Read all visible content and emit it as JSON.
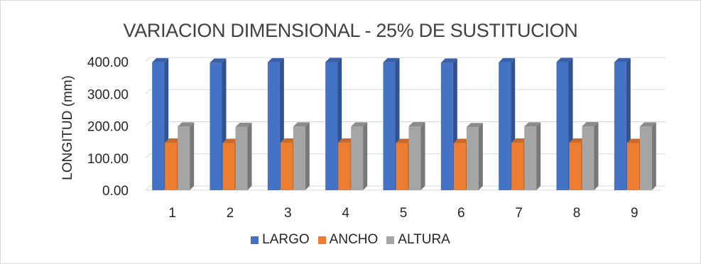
{
  "chart_data": {
    "type": "bar",
    "title": "VARIACION DIMENSIONAL - 25% DE SUSTITUCION",
    "xlabel": "",
    "ylabel": "LONGITUD (mm)",
    "ylim": [
      0,
      400
    ],
    "yticks": [
      "0.00",
      "100.00",
      "200.00",
      "300.00",
      "400.00"
    ],
    "categories": [
      "1",
      "2",
      "3",
      "4",
      "5",
      "6",
      "7",
      "8",
      "9"
    ],
    "series": [
      {
        "name": "LARGO",
        "color": "#4472c4",
        "values": [
          398,
          397,
          398,
          399,
          398,
          397,
          398,
          399,
          398
        ]
      },
      {
        "name": "ANCHO",
        "color": "#ed7d31",
        "values": [
          148,
          147,
          148,
          148,
          147,
          147,
          148,
          148,
          147
        ]
      },
      {
        "name": "ALTURA",
        "color": "#a5a5a5",
        "values": [
          198,
          197,
          198,
          198,
          199,
          196,
          198,
          199,
          198
        ]
      }
    ],
    "grid": true,
    "legend_position": "bottom",
    "style": "3d-clustered-column"
  }
}
